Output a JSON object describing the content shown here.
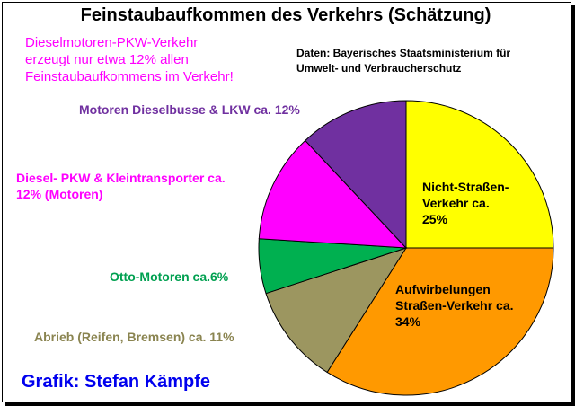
{
  "title": "Feinstaubaufkommen des Verkehrs (Schätzung)",
  "note": "Dieselmotoren-PKW-Verkehr\nerzeugt  nur etwa 12% allen\nFeinstaubaufkommens im Verkehr!",
  "source": "Daten: Bayerisches Staatsministerium für\nUmwelt- und Verbraucherschutz",
  "credit": "Grafik: Stefan Kämpfe",
  "colors": {
    "note": "#ff00ff",
    "credit": "#0000ee"
  },
  "chart_data": {
    "type": "pie",
    "title": "Feinstaubaufkommen des Verkehrs (Schätzung)",
    "slices": [
      {
        "label": "Nicht-Straßen-\nVerkehr ca.\n25%",
        "value": 25,
        "color": "#ffff00",
        "label_color": "#000000"
      },
      {
        "label": "Aufwirbelungen\nStraßen-Verkehr ca.\n34%",
        "value": 34,
        "color": "#ff9900",
        "label_color": "#000000"
      },
      {
        "label": "Abrieb (Reifen, Bremsen) ca. 11%",
        "value": 11,
        "color": "#9c9660",
        "label_color": "#8a8450"
      },
      {
        "label": "Otto-Motoren ca.6%",
        "value": 6,
        "color": "#00b050",
        "label_color": "#00a050"
      },
      {
        "label": "Diesel- PKW & Kleintransporter ca.\n12% (Motoren)",
        "value": 12,
        "color": "#ff00ff",
        "label_color": "#ff00ff"
      },
      {
        "label": "Motoren Dieselbusse & LKW ca. 12%",
        "value": 12,
        "color": "#7030a0",
        "label_color": "#7030a0"
      }
    ]
  }
}
